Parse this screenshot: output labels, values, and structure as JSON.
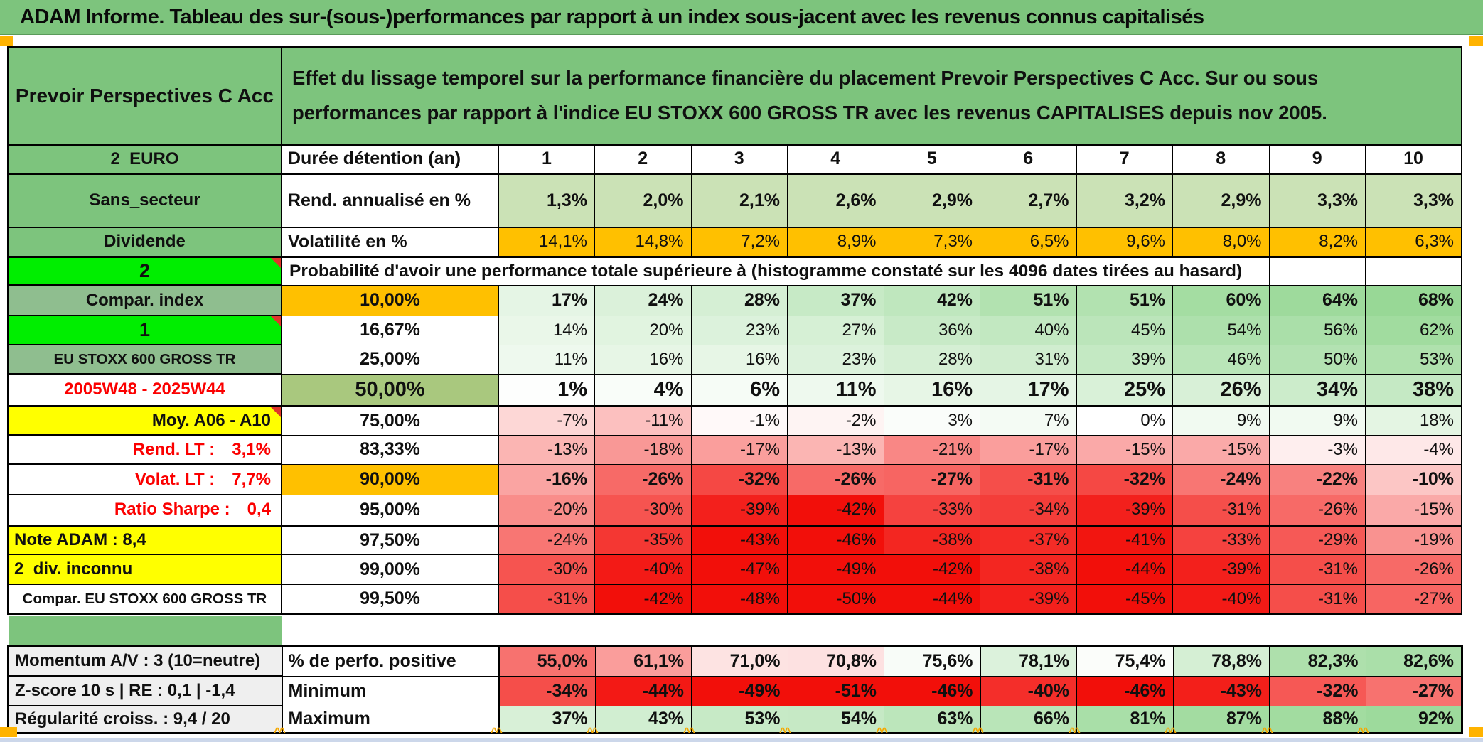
{
  "title": "ADAM Informe. Tableau des sur-(sous-)performances par rapport à un index sous-jacent avec les revenus connus capitalisés",
  "header": {
    "fund_name": "Prevoir Perspectives C Acc",
    "description": "Effet du lissage temporel sur la performance financière du placement Prevoir Perspectives C Acc. Sur ou sous performances par rapport à l'indice EU STOXX 600 GROSS TR avec les revenus CAPITALISES depuis nov 2005."
  },
  "colors": {
    "title_green": "#7dc47d",
    "label_green_muted": "#8fbe8f",
    "lime_green": "#00ee00",
    "orange": "#ffc000",
    "olive_green": "#a9c87e",
    "yellow": "#ffff00",
    "flat_light_green": "#cbe2b6",
    "gray_label": "#efefef",
    "red_text": "#fb0000",
    "comment_corner_red": "#e0352b",
    "scale_green_strong": "#95d793",
    "scale_red_strong": "#f2120a",
    "marker_orange": "#f5a800",
    "window_edge": "#ccd7ea"
  },
  "rows": [
    {
      "id": "duree",
      "left": "2_EURO",
      "leftBg": "green",
      "head": "Durée détention (an)",
      "headAlign": "left",
      "values": [
        "1",
        "2",
        "3",
        "4",
        "5",
        "6",
        "7",
        "8",
        "9",
        "10"
      ],
      "bold": true,
      "center": true,
      "thickBottom": true
    },
    {
      "id": "rend",
      "left": "Sans_secteur",
      "leftBg": "green",
      "head": "Rend. annualisé en %",
      "headAlign": "left",
      "values": [
        "1,3%",
        "2,0%",
        "2,1%",
        "2,6%",
        "2,9%",
        "2,7%",
        "3,2%",
        "2,9%",
        "3,3%",
        "3,3%"
      ],
      "scale": "flatgreen",
      "bold": true
    },
    {
      "id": "vol",
      "left": "Dividende",
      "leftBg": "green",
      "head": "Volatilité en %",
      "headAlign": "left",
      "values": [
        "14,1%",
        "14,8%",
        "7,2%",
        "8,9%",
        "7,3%",
        "6,5%",
        "9,6%",
        "8,0%",
        "8,2%",
        "6,3%"
      ],
      "scale": "orange",
      "thickBottom": true
    },
    {
      "id": "probhead",
      "left": "2",
      "leftBg": "lime",
      "corner": true,
      "merged": "Probabilité d'avoir une performance totale supérieure à (histogramme constaté sur les 4096 dates tirées au hasard)"
    },
    {
      "id": "p10",
      "left": "Compar. index",
      "leftBg": "green2",
      "head": "10,00%",
      "headBg": "orange",
      "values": [
        "17%",
        "24%",
        "28%",
        "37%",
        "42%",
        "51%",
        "51%",
        "60%",
        "64%",
        "68%"
      ],
      "nums": [
        17,
        24,
        28,
        37,
        42,
        51,
        51,
        60,
        64,
        68
      ],
      "scale": "prob",
      "bold": true
    },
    {
      "id": "p16",
      "left": "1",
      "leftBg": "lime",
      "corner": true,
      "head": "16,67%",
      "values": [
        "14%",
        "20%",
        "23%",
        "27%",
        "36%",
        "40%",
        "45%",
        "54%",
        "56%",
        "62%"
      ],
      "nums": [
        14,
        20,
        23,
        27,
        36,
        40,
        45,
        54,
        56,
        62
      ],
      "scale": "prob"
    },
    {
      "id": "p25",
      "left": "EU STOXX 600 GROSS TR",
      "leftBg": "green2",
      "leftSmall": true,
      "head": "25,00%",
      "values": [
        "11%",
        "16%",
        "16%",
        "23%",
        "28%",
        "31%",
        "39%",
        "46%",
        "50%",
        "53%"
      ],
      "nums": [
        11,
        16,
        16,
        23,
        28,
        31,
        39,
        46,
        50,
        53
      ],
      "scale": "prob"
    },
    {
      "id": "p50",
      "left": "2005W48 - 2025W44",
      "leftColor": "red",
      "head": "50,00%",
      "headBg": "olive",
      "headBig": true,
      "values": [
        "1%",
        "4%",
        "6%",
        "11%",
        "16%",
        "17%",
        "25%",
        "26%",
        "34%",
        "38%"
      ],
      "nums": [
        1,
        4,
        6,
        11,
        16,
        17,
        25,
        26,
        34,
        38
      ],
      "scale": "prob",
      "bold": true,
      "big": true,
      "thickBottom": true
    },
    {
      "id": "p75",
      "left": "Moy. A06 - A10",
      "leftBg": "yellow",
      "leftAlign": "right",
      "corner": true,
      "head": "75,00%",
      "values": [
        "-7%",
        "-11%",
        "-1%",
        "-2%",
        "3%",
        "7%",
        "0%",
        "9%",
        "9%",
        "18%"
      ],
      "nums": [
        -7,
        -11,
        -1,
        -2,
        3,
        7,
        0,
        9,
        9,
        18
      ],
      "scale": "prob"
    },
    {
      "id": "p83",
      "leftParts": [
        "Rend. LT :",
        "3,1%"
      ],
      "leftColor": "red",
      "leftAlign": "right",
      "head": "83,33%",
      "values": [
        "-13%",
        "-18%",
        "-17%",
        "-13%",
        "-21%",
        "-17%",
        "-15%",
        "-15%",
        "-3%",
        "-4%"
      ],
      "nums": [
        -13,
        -18,
        -17,
        -13,
        -21,
        -17,
        -15,
        -15,
        -3,
        -4
      ],
      "scale": "prob"
    },
    {
      "id": "p90",
      "leftParts": [
        "Volat. LT :",
        "7,7%"
      ],
      "leftColor": "red",
      "leftAlign": "right",
      "head": "90,00%",
      "headBg": "orange",
      "values": [
        "-16%",
        "-26%",
        "-32%",
        "-26%",
        "-27%",
        "-31%",
        "-32%",
        "-24%",
        "-22%",
        "-10%"
      ],
      "nums": [
        -16,
        -26,
        -32,
        -26,
        -27,
        -31,
        -32,
        -24,
        -22,
        -10
      ],
      "scale": "prob",
      "bold": true
    },
    {
      "id": "p95",
      "leftParts": [
        "Ratio Sharpe :",
        "0,4"
      ],
      "leftColor": "red",
      "leftAlign": "right",
      "head": "95,00%",
      "values": [
        "-20%",
        "-30%",
        "-39%",
        "-42%",
        "-33%",
        "-34%",
        "-39%",
        "-31%",
        "-26%",
        "-15%"
      ],
      "nums": [
        -20,
        -30,
        -39,
        -42,
        -33,
        -34,
        -39,
        -31,
        -26,
        -15
      ],
      "scale": "prob",
      "thickBottom": true
    },
    {
      "id": "p975",
      "left": "Note ADAM : 8,4",
      "leftBg": "yellow",
      "leftAlign": "left",
      "head": "97,50%",
      "values": [
        "-24%",
        "-35%",
        "-43%",
        "-46%",
        "-38%",
        "-37%",
        "-41%",
        "-33%",
        "-29%",
        "-19%"
      ],
      "nums": [
        -24,
        -35,
        -43,
        -46,
        -38,
        -37,
        -41,
        -33,
        -29,
        -19
      ],
      "scale": "prob"
    },
    {
      "id": "p99",
      "left": "2_div. inconnu",
      "leftBg": "yellow",
      "leftAlign": "left",
      "head": "99,00%",
      "values": [
        "-30%",
        "-40%",
        "-47%",
        "-49%",
        "-42%",
        "-38%",
        "-44%",
        "-39%",
        "-31%",
        "-26%"
      ],
      "nums": [
        -30,
        -40,
        -47,
        -49,
        -42,
        -38,
        -44,
        -39,
        -31,
        -26
      ],
      "scale": "prob"
    },
    {
      "id": "p995",
      "left": "Compar. EU STOXX 600 GROSS TR",
      "leftSmall": true,
      "head": "99,50%",
      "values": [
        "-31%",
        "-42%",
        "-48%",
        "-50%",
        "-44%",
        "-39%",
        "-45%",
        "-40%",
        "-31%",
        "-27%"
      ],
      "nums": [
        -31,
        -42,
        -48,
        -50,
        -44,
        -39,
        -45,
        -40,
        -31,
        -27
      ],
      "scale": "prob",
      "thickBottom": true
    },
    {
      "id": "sep",
      "separator": true
    },
    {
      "id": "perfo",
      "left": "Momentum A/V : 3 (10=neutre)",
      "leftBg": "gray",
      "leftAlign": "left",
      "head": "% de perfo. positive",
      "headAlign": "left",
      "values": [
        "55,0%",
        "61,1%",
        "71,0%",
        "70,8%",
        "75,6%",
        "78,1%",
        "75,4%",
        "78,8%",
        "82,3%",
        "82,6%"
      ],
      "nums": [
        55.0,
        61.1,
        71.0,
        70.8,
        75.6,
        78.1,
        75.4,
        78.8,
        82.3,
        82.6
      ],
      "scale": "perfo",
      "bold": true
    },
    {
      "id": "min",
      "left": "Z-score 10 s | RE : 0,1 | -1,4",
      "leftBg": "gray",
      "leftAlign": "left",
      "head": "Minimum",
      "headAlign": "left",
      "values": [
        "-34%",
        "-44%",
        "-49%",
        "-51%",
        "-46%",
        "-40%",
        "-46%",
        "-43%",
        "-32%",
        "-27%"
      ],
      "nums": [
        -34,
        -44,
        -49,
        -51,
        -46,
        -40,
        -46,
        -43,
        -32,
        -27
      ],
      "scale": "minred",
      "bold": true
    },
    {
      "id": "max",
      "left": "Régularité croiss. : 9,4 / 20",
      "leftBg": "gray",
      "leftAlign": "left",
      "head": "Maximum",
      "headAlign": "left",
      "values": [
        "37%",
        "43%",
        "53%",
        "54%",
        "63%",
        "66%",
        "81%",
        "87%",
        "88%",
        "92%"
      ],
      "nums": [
        37,
        43,
        53,
        54,
        63,
        66,
        81,
        87,
        88,
        92
      ],
      "scale": "maxgreen",
      "bold": true
    }
  ]
}
